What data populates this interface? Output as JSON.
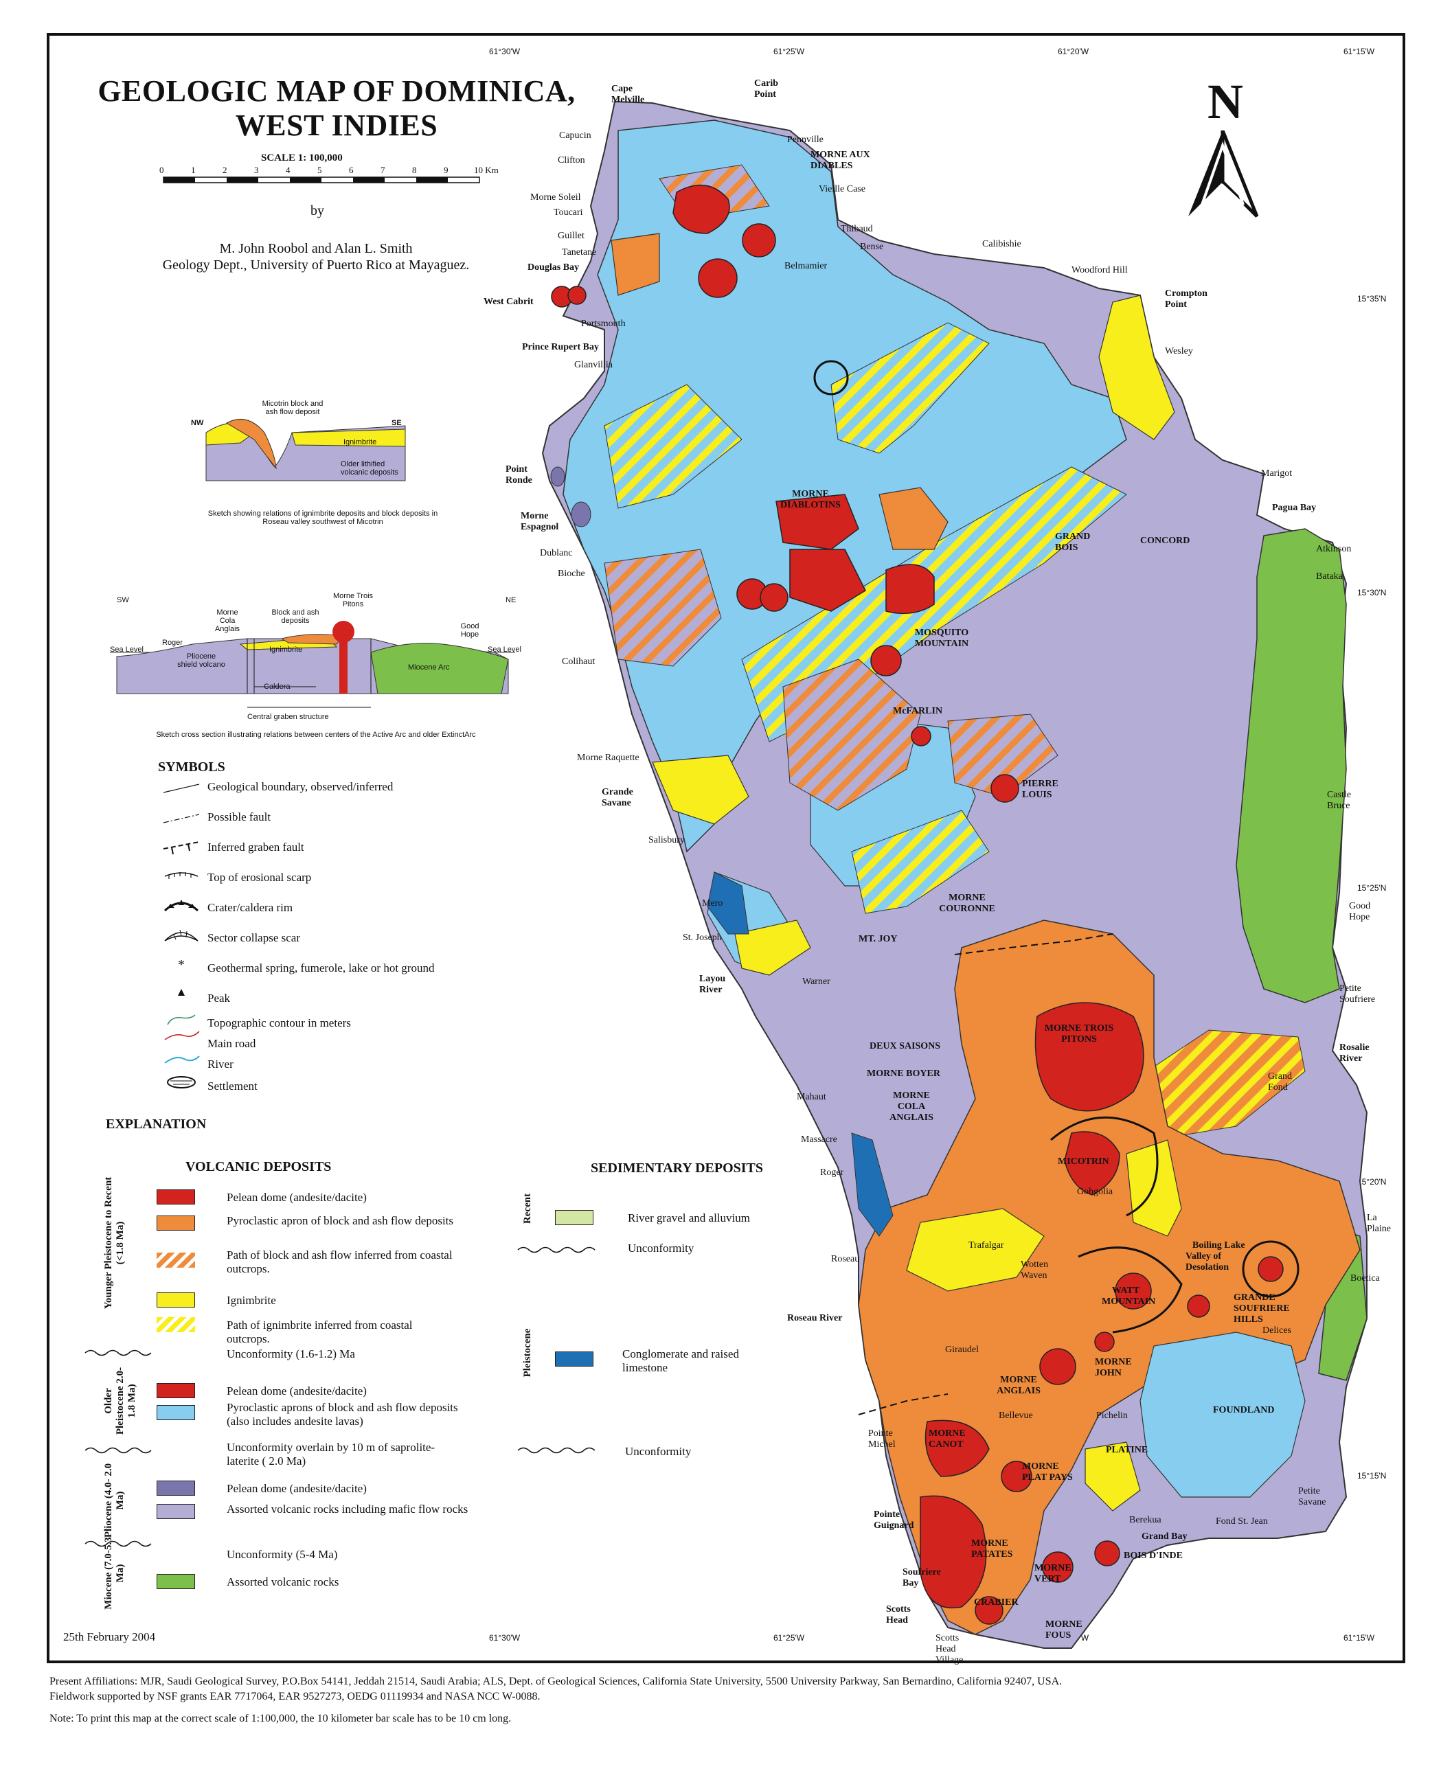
{
  "title": {
    "line1": "GEOLOGIC MAP OF DOMINICA,",
    "line2": "WEST INDIES"
  },
  "scale": {
    "label": "SCALE 1: 100,000",
    "ticks": [
      "0",
      "1",
      "2",
      "3",
      "4",
      "5",
      "6",
      "7",
      "8",
      "9",
      "10 Km"
    ]
  },
  "byline": "by",
  "authors": {
    "names": "M. John Roobol and Alan L. Smith",
    "affiliation": "Geology Dept., University of Puerto Rico at Mayaguez."
  },
  "north_arrow": {
    "letter": "N"
  },
  "coordinates": {
    "top": [
      "61°30'W",
      "61°25'W",
      "61°20'W",
      "61°15'W"
    ],
    "bottom": [
      "61°30'W",
      "61°25'W",
      "61°20'W",
      "61°15'W"
    ],
    "right": [
      "15°35'N",
      "15°30'N",
      "15°25'N",
      "15°20'N",
      "15°15'N"
    ]
  },
  "sketch1": {
    "nw": "NW",
    "se": "SE",
    "label_block": "Micotrin block and ash flow deposit",
    "label_ignimbrite": "Ignimbrite",
    "label_older": "Older lithified volcanic deposits",
    "caption": "Sketch showing relations of ignimbrite deposits and block deposits in Roseau valley southwest of Micotrin"
  },
  "sketch2": {
    "sw": "SW",
    "ne": "NE",
    "sea_level_left": "Sea Level",
    "sea_level_right": "Sea Level",
    "roger": "Roger",
    "morne_cola": "Morne Cola Anglais",
    "block_ash": "Block and ash deposits",
    "morne_trois": "Morne Trois Pitons",
    "good_hope": "Good Hope",
    "ignimbrite": "Ignimbrite",
    "pliocene": "Pliocene shield volcano",
    "miocene": "Miocene Arc",
    "caldera": "Caldera",
    "graben": "Central graben structure",
    "caption": "Sketch cross section illustrating relations between centers of the Active Arc and older ExtinctArc"
  },
  "symbols": {
    "heading": "SYMBOLS",
    "items": [
      "Geological boundary, observed/inferred",
      "Possible fault",
      "Inferred graben fault",
      "Top of erosional scarp",
      "Crater/caldera rim",
      "Sector collapse scar",
      "Geothermal spring, fumerole, lake or hot ground",
      "Peak",
      "Topographic contour in meters",
      "Main road",
      "River",
      "Settlement"
    ]
  },
  "explanation": {
    "heading": "EXPLANATION",
    "volcanic_heading": "VOLCANIC DEPOSITS",
    "sedimentary_heading": "SEDIMENTARY DEPOSITS",
    "periods": {
      "younger": "Younger Pleistocene to Recent (<1.8 Ma)",
      "older": "Older Pleistocene 2.0-1.8 Ma)",
      "pliocene": "Pliocene (4.0- 2.0 Ma)",
      "miocene": "Miocene (7.0-5.3 Ma)",
      "recent": "Recent",
      "pleistocene": "Pleistocene"
    },
    "volcanic_units": [
      {
        "label": "Pelean dome (andesite/dacite)",
        "color": "#d2231f"
      },
      {
        "label": "Pyroclastic apron of block and ash flow deposits",
        "color": "#ef8c3c"
      },
      {
        "label": "Path of block and ash flow inferred from coastal outcrops.",
        "color": "#ef8c3c"
      },
      {
        "label": "Ignimbrite",
        "color": "#f7ee1c"
      },
      {
        "label": "Path of ignimbrite inferred from coastal outcrops.",
        "color": "#f7ee1c"
      },
      {
        "label": "Unconformity (1.6-1.2) Ma",
        "color": ""
      },
      {
        "label": "Pelean dome (andesite/dacite)",
        "color": "#d2231f"
      },
      {
        "label": "Pyroclastic aprons of block and ash flow deposits (also includes andesite lavas)",
        "color": "#87cdef"
      },
      {
        "label": "Unconformity overlain by 10 m of saprolite-laterite (   2.0 Ma)",
        "color": ""
      },
      {
        "label": "Pelean dome (andesite/dacite)",
        "color": "#7a76ad"
      },
      {
        "label": "Assorted volcanic rocks including mafic flow rocks",
        "color": "#b4aed6"
      },
      {
        "label": "Unconformity (5-4 Ma)",
        "color": ""
      },
      {
        "label": "Assorted volcanic rocks",
        "color": "#7cbf4a"
      }
    ],
    "sedimentary_units": [
      {
        "label": "River gravel and alluvium",
        "color": "#d4e6a4"
      },
      {
        "label": "Unconformity",
        "color": ""
      },
      {
        "label": "Conglomerate and raised limestone",
        "color": "#1f6fb4"
      },
      {
        "label": "Unconformity",
        "color": ""
      }
    ]
  },
  "places": {
    "cape_melville": "Cape Melville",
    "carib_point": "Carib Point",
    "capucin": "Capucin",
    "pennville": "Pennville",
    "clifton": "Clifton",
    "morne_aux_diables": "MORNE AUX DIABLES",
    "vieille_case": "Vieille Case",
    "morne_soleil": "Morne Soleil",
    "toucari": "Toucari",
    "guillet": "Guillet",
    "thibaud": "Thibaud",
    "tanetane": "Tanetane",
    "bense": "Bense",
    "calibishie": "Calibishie",
    "douglas_bay": "Douglas Bay",
    "belmamier": "Belmamier",
    "woodford_hill": "Woodford Hill",
    "west_cabrit": "West Cabrit",
    "crompton_point": "Crompton Point",
    "portsmouth": "Portsmouth",
    "prince_rupert_bay": "Prince Rupert Bay",
    "glanvillia": "Glanvillia",
    "wesley": "Wesley",
    "point_ronde": "Point Ronde",
    "marigot": "Marigot",
    "morne_diablotins": "MORNE DIABLOTINS",
    "pagua_bay": "Pagua Bay",
    "morne_espagnol": "Morne Espagnol",
    "grand_bois": "GRAND BOIS",
    "concord": "CONCORD",
    "atkinson": "Atkinson",
    "dublanc": "Dublanc",
    "bataka": "Bataka",
    "bioche": "Bioche",
    "mosquito_mountain": "MOSQUITO MOUNTAIN",
    "colihaut": "Colihaut",
    "mcfarlin": "McFARLIN",
    "morne_raquette": "Morne Raquette",
    "pierre_louis": "PIERRE LOUIS",
    "grande_savane": "Grande Savane",
    "castle_bruce": "Castle Bruce",
    "salisbury": "Salisbury",
    "morne_couronne": "MORNE COURONNE",
    "mero": "Mero",
    "good_hope": "Good Hope",
    "st_joseph": "St. Joseph",
    "mt_joy": "MT. JOY",
    "layou_river": "Layou River",
    "warner": "Warner",
    "petite_soufriere": "Petite Soufriere",
    "morne_trois_pitons": "MORNE TROIS PITONS",
    "deux_saisons": "DEUX SAISONS",
    "rosalie_river": "Rosalie River",
    "morne_boyer": "MORNE BOYER",
    "grand_fond": "Grand Fond",
    "mahaut": "Mahaut",
    "morne_cola_anglais": "MORNE COLA ANGLAIS",
    "massacre": "Massacre",
    "roger": "Roger",
    "micotrin": "MICOTRIN",
    "gohgolia": "Gohgolia",
    "la_plaine": "La Plaine",
    "trafalgar": "Trafalgar",
    "boiling_lake": "Boiling Lake",
    "valley_of_desolation": "Valley of Desolation",
    "roseau": "Roseau",
    "wotten_waven": "Wotten Waven",
    "boetica": "Boetica",
    "watt_mountain": "WATT MOUNTAIN",
    "grande_soufriere_hills": "GRANDE SOUFRIERE HILLS",
    "roseau_river": "Roseau River",
    "delices": "Delices",
    "giraudel": "Giraudel",
    "morne_john": "MORNE JOHN",
    "morne_anglais": "MORNE ANGLAIS",
    "foundland": "FOUNDLAND",
    "bellevue": "Bellevue",
    "pichelin": "Pichelin",
    "pointe_michel": "Pointe Michel",
    "morne_canot": "MORNE CANOT",
    "platine": "PLATINE",
    "morne_plat_pays": "MORNE PLAT PAYS",
    "petite_savane": "Petite Savane",
    "pointe_guignard": "Pointe Guignard",
    "berekua": "Berekua",
    "fond_st_jean": "Fond St. Jean",
    "grand_bay": "Grand Bay",
    "morne_patates": "MORNE PATATES",
    "bois_dinde": "BOIS D'INDE",
    "soufriere_bay": "Soufriere Bay",
    "morne_vert": "MORNE VERT",
    "scotts_head": "Scotts Head",
    "crabier": "CRABIER",
    "morne_fous": "MORNE FOUS",
    "scotts_head_village": "Scotts Head Village"
  },
  "date": "25th February 2004",
  "footer": {
    "line1": "Present Affiliations: MJR, Saudi Geological Survey, P.O.Box 54141, Jeddah 21514, Saudi Arabia; ALS, Dept. of Geological Sciences, California State University, 5500 University Parkway, San Bernardino, California 92407, USA.",
    "line2": "Fieldwork supported by NSF grants  EAR 7717064, EAR 9527273, OEDG 01119934 and NASA NCC W-0088.",
    "line3": "Note: To print this map at the correct scale of 1:100,000, the 10 kilometer bar scale has to be 10 cm long."
  }
}
